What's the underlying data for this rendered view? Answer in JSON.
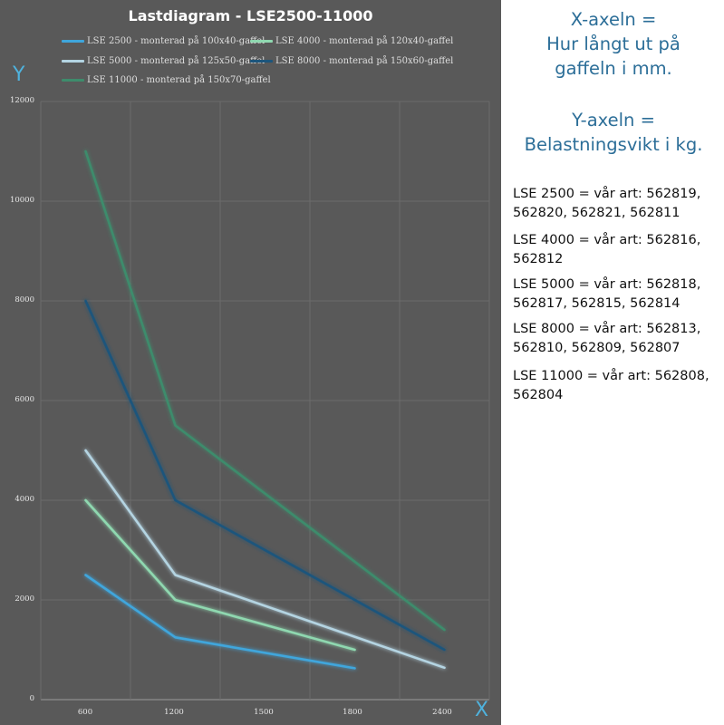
{
  "chart_data": {
    "type": "line",
    "title": "Lastdiagram - LSE2500-11000",
    "x": [
      600,
      1200,
      1500,
      1800,
      2400
    ],
    "xlabel": "X",
    "ylabel": "Y",
    "ylim": [
      0,
      12000
    ],
    "y_ticks": [
      0,
      2000,
      4000,
      6000,
      8000,
      10000,
      12000
    ],
    "grid": true,
    "legend_position": "top",
    "series": [
      {
        "name": "LSE 2500 - monterad på 100x40-gaffel",
        "color": "#3fa6dc",
        "points": [
          [
            600,
            2500
          ],
          [
            1200,
            1250
          ],
          [
            1800,
            630
          ]
        ]
      },
      {
        "name": "LSE 4000 - monterad på 120x40-gaffel",
        "color": "#8fd8b0",
        "points": [
          [
            600,
            4000
          ],
          [
            1200,
            2000
          ],
          [
            1800,
            1000
          ]
        ]
      },
      {
        "name": "LSE 5000 - monterad på 125x50-gaffel",
        "color": "#b4d4e2",
        "points": [
          [
            600,
            5000
          ],
          [
            1200,
            2500
          ],
          [
            2400,
            640
          ]
        ]
      },
      {
        "name": "LSE 8000 - monterad på 150x60-gaffel",
        "color": "#1c557c",
        "points": [
          [
            600,
            8000
          ],
          [
            1200,
            4000
          ],
          [
            2400,
            1000
          ]
        ]
      },
      {
        "name": "LSE 11000 - monterad på 150x70-gaffel",
        "color": "#3e8c6c",
        "points": [
          [
            600,
            11000
          ],
          [
            1200,
            5500
          ],
          [
            2400,
            1400
          ]
        ]
      }
    ]
  },
  "notes": {
    "x_axis_lines": [
      "X-axeln =",
      "Hur långt ut på",
      "gaffeln i mm."
    ],
    "y_axis_lines": [
      "Y-axeln =",
      "Belastningsvikt i kg."
    ],
    "articles": [
      {
        "line1": "LSE 2500 = vår art: 562819,",
        "line2": "562820, 562821, 562811"
      },
      {
        "line1": "LSE 4000 = vår art: 562816,",
        "line2": "562812"
      },
      {
        "line1": "LSE 5000 = vår art: 562818,",
        "line2": "562817, 562815, 562814"
      },
      {
        "line1": "LSE 8000 = vår art: 562813,",
        "line2": "562810, 562809, 562807"
      },
      {
        "line1": "LSE 11000 = vår art: 562808,",
        "line2": "562804"
      }
    ]
  }
}
